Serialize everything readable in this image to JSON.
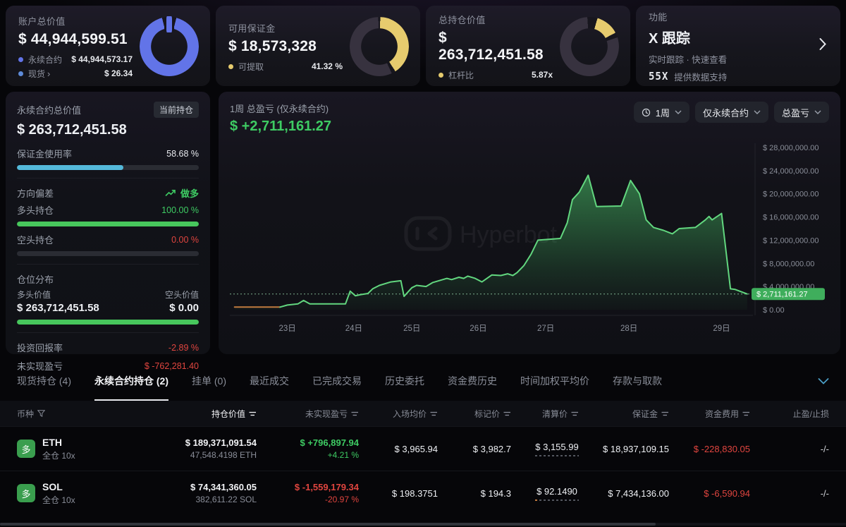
{
  "colors": {
    "green": "#3ecb63",
    "red": "#e0453f",
    "yellow": "#e6cb6e",
    "blue": "#6274e8",
    "cyan": "#54b9da",
    "dark_segment": "#37323f",
    "donut_gap": "#17161e"
  },
  "cards": {
    "account": {
      "label": "账户总价值",
      "value": "$ 44,944,599.51",
      "legend": [
        {
          "label": "永续合约",
          "value": "$ 44,944,573.17",
          "dot": "#6274e8"
        },
        {
          "label": "现货",
          "chevron": "›",
          "value": "$ 26.34",
          "dot": "#5e8bd8"
        }
      ],
      "donut": {
        "power_stem": "#6274e8",
        "segments": [
          {
            "color": "#6274e8",
            "start": 14,
            "end": 346
          }
        ]
      }
    },
    "margin": {
      "label": "可用保证金",
      "value": "$ 18,573,328",
      "legend": [
        {
          "label": "可提取",
          "value": "41.32 %",
          "dot": "#e6cb6e"
        }
      ],
      "donut": {
        "segments": [
          {
            "color": "#e6cb6e",
            "start": 2,
            "end": 147
          },
          {
            "color": "#37323f",
            "start": 155,
            "end": 358
          }
        ]
      }
    },
    "position": {
      "label": "总持仓价值",
      "value": "$ 263,712,451.58",
      "legend": [
        {
          "label": "杠杆比",
          "value": "5.87x",
          "dot": "#e6cb6e"
        }
      ],
      "donut": {
        "segments": [
          {
            "color": "#e6cb6e",
            "start": 16,
            "end": 62
          },
          {
            "color": "#37323f",
            "start": 72,
            "end": 356
          }
        ]
      }
    },
    "feature": {
      "label": "功能",
      "title": "X 跟踪",
      "subtitle": "实时跟踪 · 快速查看",
      "provider_logo": "55X",
      "provider_text": "提供数据支持"
    }
  },
  "perp_panel": {
    "title": "永续合约总价值",
    "badge": "当前持仓",
    "value": "$ 263,712,451.58",
    "margin_usage": {
      "label": "保证金使用率",
      "value": "58.68 %",
      "pct": 58.68
    },
    "bias": {
      "label": "方向偏差",
      "value": "做多"
    },
    "long": {
      "label": "多头持仓",
      "value": "100.00 %",
      "pct": 100
    },
    "short": {
      "label": "空头持仓",
      "value": "0.00 %",
      "pct": 0
    },
    "dist": {
      "label": "仓位分布",
      "long_label": "多头价值",
      "long_value": "$ 263,712,451.58",
      "short_label": "空头价值",
      "short_value": "$ 0.00",
      "long_pct": 100
    },
    "roi": {
      "label": "投资回报率",
      "value": "-2.89 %"
    },
    "upnl": {
      "label": "未实现盈亏",
      "value": "$ -762,281.40"
    }
  },
  "chart_panel": {
    "title": "1周 总盈亏 (仅永续合约)",
    "value": "$ +2,711,161.27",
    "controls": {
      "period": "1周",
      "scope": "仅永续合约",
      "metric": "总盈亏"
    },
    "watermark": "Hyperbot",
    "chart_data": {
      "type": "area",
      "title": "1周 总盈亏 (仅永续合约)",
      "ylim": [
        0,
        28000000
      ],
      "ytick_labels": [
        "$ 28,000,000.00",
        "$ 24,000,000.00",
        "$ 20,000,000.00",
        "$ 16,000,000.00",
        "$ 12,000,000.00",
        "$ 8,000,000.00",
        "$ 4,000,000.00",
        "$ 0.00"
      ],
      "x_ticks": [
        "23日",
        "24日",
        "25日",
        "26日",
        "27日",
        "28日",
        "29日"
      ],
      "x_tick_pos": [
        0.11,
        0.237,
        0.348,
        0.475,
        0.604,
        0.763,
        0.94
      ],
      "grid": false,
      "legend": "none",
      "marker": {
        "label": "$ 2,711,161.27",
        "value": 2711161.27
      },
      "line_color": "#62d77f",
      "start_segment_color": "#c07a3e",
      "series": [
        {
          "name": "总盈亏",
          "points": [
            [
              0.009,
              450000
            ],
            [
              0.096,
              450000
            ],
            [
              0.11,
              800000
            ],
            [
              0.13,
              1000000
            ],
            [
              0.141,
              1600000
            ],
            [
              0.153,
              1000000
            ],
            [
              0.221,
              1000000
            ],
            [
              0.23,
              3200000
            ],
            [
              0.24,
              2400000
            ],
            [
              0.25,
              2600000
            ],
            [
              0.264,
              2800000
            ],
            [
              0.273,
              3600000
            ],
            [
              0.286,
              4200000
            ],
            [
              0.308,
              4800000
            ],
            [
              0.327,
              5000000
            ],
            [
              0.333,
              2300000
            ],
            [
              0.348,
              3800000
            ],
            [
              0.357,
              4200000
            ],
            [
              0.375,
              4000000
            ],
            [
              0.388,
              4700000
            ],
            [
              0.415,
              5400000
            ],
            [
              0.424,
              5200000
            ],
            [
              0.438,
              5600000
            ],
            [
              0.447,
              5400000
            ],
            [
              0.455,
              5800000
            ],
            [
              0.469,
              5400000
            ],
            [
              0.482,
              4800000
            ],
            [
              0.501,
              6000000
            ],
            [
              0.518,
              5900000
            ],
            [
              0.531,
              6200000
            ],
            [
              0.541,
              5900000
            ],
            [
              0.549,
              6400000
            ],
            [
              0.562,
              7600000
            ],
            [
              0.576,
              9600000
            ],
            [
              0.589,
              12000000
            ],
            [
              0.632,
              12300000
            ],
            [
              0.645,
              15000000
            ],
            [
              0.655,
              19000000
            ],
            [
              0.668,
              20300000
            ],
            [
              0.685,
              23200000
            ],
            [
              0.701,
              17800000
            ],
            [
              0.748,
              17900000
            ],
            [
              0.766,
              22300000
            ],
            [
              0.783,
              20000000
            ],
            [
              0.796,
              15500000
            ],
            [
              0.81,
              14200000
            ],
            [
              0.829,
              13700000
            ],
            [
              0.846,
              13100000
            ],
            [
              0.859,
              14000000
            ],
            [
              0.89,
              14200000
            ],
            [
              0.909,
              15500000
            ],
            [
              0.916,
              16100000
            ],
            [
              0.922,
              15500000
            ],
            [
              0.93,
              16000000
            ],
            [
              0.94,
              16600000
            ],
            [
              0.957,
              3600000
            ],
            [
              0.966,
              3500000
            ],
            [
              0.989,
              2711161.27
            ]
          ]
        }
      ]
    }
  },
  "bottom": {
    "tabs": [
      {
        "label": "现货持仓 (4)",
        "active": false
      },
      {
        "label": "永续合约持仓 (2)",
        "active": true
      },
      {
        "label": "挂单 (0)",
        "active": false
      },
      {
        "label": "最近成交",
        "active": false
      },
      {
        "label": "已完成交易",
        "active": false
      },
      {
        "label": "历史委托",
        "active": false
      },
      {
        "label": "资金费历史",
        "active": false
      },
      {
        "label": "时间加权平均价",
        "active": false
      },
      {
        "label": "存款与取款",
        "active": false
      }
    ],
    "columns": [
      {
        "label": "币种",
        "icon": "filter",
        "align": "left",
        "active": false
      },
      {
        "label": "持仓价值",
        "icon": "sort",
        "active": true
      },
      {
        "label": "未实现盈亏",
        "icon": "sort",
        "active": false
      },
      {
        "label": "入场均价",
        "icon": "sort",
        "active": false
      },
      {
        "label": "标记价",
        "icon": "sort",
        "active": false
      },
      {
        "label": "清算价",
        "icon": "sort",
        "active": false
      },
      {
        "label": "保证金",
        "icon": "sort",
        "active": false
      },
      {
        "label": "资金费用",
        "icon": "sort",
        "active": false
      },
      {
        "label": "止盈/止损",
        "icon": "none",
        "active": false
      }
    ],
    "rows": [
      {
        "side": "多",
        "symbol": "ETH",
        "mode": "全仓 10x",
        "value": "$ 189,371,091.54",
        "qty": "47,548.4198 ETH",
        "pnl": "$ +796,897.94",
        "pnl_pct": "+4.21 %",
        "pnl_dir": "up",
        "entry": "$ 3,965.94",
        "mark": "$ 3,982.7",
        "liq": "$ 3,155.99",
        "liq_first_dot": false,
        "margin": "$ 18,937,109.15",
        "funding": "$ -228,830.05",
        "tpsl": "-/-"
      },
      {
        "side": "多",
        "symbol": "SOL",
        "mode": "全仓 10x",
        "value": "$ 74,341,360.05",
        "qty": "382,611.22 SOL",
        "pnl": "$ -1,559,179.34",
        "pnl_pct": "-20.97 %",
        "pnl_dir": "down",
        "entry": "$ 198.3751",
        "mark": "$ 194.3",
        "liq": "$ 92.1490",
        "liq_first_dot": true,
        "margin": "$ 7,434,136.00",
        "funding": "$ -6,590.94",
        "tpsl": "-/-"
      }
    ]
  }
}
